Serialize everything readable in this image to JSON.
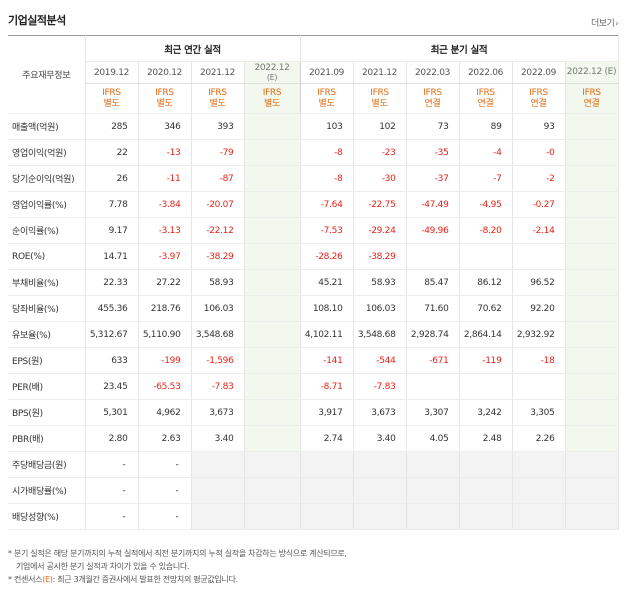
{
  "title": "기업실적분석",
  "more_label": "더보기",
  "more_arrow": "›",
  "headers": {
    "row_label": "주요재무정보",
    "annual": "최근 연간 실적",
    "quarterly": "최근 분기 실적"
  },
  "periods": [
    {
      "label": "2019.12",
      "std1": "IFRS",
      "std2": "별도",
      "est": false
    },
    {
      "label": "2020.12",
      "std1": "IFRS",
      "std2": "별도",
      "est": false
    },
    {
      "label": "2021.12",
      "std1": "IFRS",
      "std2": "별도",
      "est": false
    },
    {
      "label": "2022.12",
      "est_mark": "(E)",
      "std1": "IFRS",
      "std2": "별도",
      "est": true
    },
    {
      "label": "2021.09",
      "std1": "IFRS",
      "std2": "별도",
      "est": false
    },
    {
      "label": "2021.12",
      "std1": "IFRS",
      "std2": "별도",
      "est": false
    },
    {
      "label": "2022.03",
      "std1": "IFRS",
      "std2": "연결",
      "est": false
    },
    {
      "label": "2022.06",
      "std1": "IFRS",
      "std2": "연결",
      "est": false
    },
    {
      "label": "2022.09",
      "std1": "IFRS",
      "std2": "연결",
      "est": false
    },
    {
      "label": "2022.12 (E)",
      "std1": "IFRS",
      "std2": "연결",
      "est": true
    }
  ],
  "rows": [
    {
      "label": "매출액(억원)",
      "values": [
        "285",
        "346",
        "393",
        "",
        "103",
        "102",
        "73",
        "89",
        "93",
        ""
      ]
    },
    {
      "label": "영업이익(억원)",
      "values": [
        "22",
        "-13",
        "-79",
        "",
        "-8",
        "-23",
        "-35",
        "-4",
        "-0",
        ""
      ]
    },
    {
      "label": "당기순이익(억원)",
      "values": [
        "26",
        "-11",
        "-87",
        "",
        "-8",
        "-30",
        "-37",
        "-7",
        "-2",
        ""
      ]
    },
    {
      "label": "영업이익률(%)",
      "values": [
        "7.78",
        "-3.84",
        "-20.07",
        "",
        "-7.64",
        "-22.75",
        "-47.49",
        "-4.95",
        "-0.27",
        ""
      ]
    },
    {
      "label": "순이익률(%)",
      "values": [
        "9.17",
        "-3.13",
        "-22.12",
        "",
        "-7.53",
        "-29.24",
        "-49.96",
        "-8.20",
        "-2.14",
        ""
      ]
    },
    {
      "label": "ROE(%)",
      "values": [
        "14.71",
        "-3.97",
        "-38.29",
        "",
        "-28.26",
        "-38.29",
        "",
        "",
        "",
        ""
      ]
    },
    {
      "label": "부채비율(%)",
      "values": [
        "22.33",
        "27.22",
        "58.93",
        "",
        "45.21",
        "58.93",
        "85.47",
        "86.12",
        "96.52",
        ""
      ]
    },
    {
      "label": "당좌비율(%)",
      "values": [
        "455.36",
        "218.76",
        "106.03",
        "",
        "108.10",
        "106.03",
        "71.60",
        "70.62",
        "92.20",
        ""
      ]
    },
    {
      "label": "유보율(%)",
      "values": [
        "5,312.67",
        "5,110.90",
        "3,548.68",
        "",
        "4,102.11",
        "3,548.68",
        "2,928.74",
        "2,864.14",
        "2,932.92",
        ""
      ]
    },
    {
      "label": "EPS(원)",
      "values": [
        "633",
        "-199",
        "-1,596",
        "",
        "-141",
        "-544",
        "-671",
        "-119",
        "-18",
        ""
      ]
    },
    {
      "label": "PER(배)",
      "values": [
        "23.45",
        "-65.53",
        "-7.83",
        "",
        "-8.71",
        "-7.83",
        "",
        "",
        "",
        ""
      ]
    },
    {
      "label": "BPS(원)",
      "values": [
        "5,301",
        "4,962",
        "3,673",
        "",
        "3,917",
        "3,673",
        "3,307",
        "3,242",
        "3,305",
        ""
      ]
    },
    {
      "label": "PBR(배)",
      "values": [
        "2.80",
        "2.63",
        "3.40",
        "",
        "2.74",
        "3.40",
        "4.05",
        "2.48",
        "2.26",
        ""
      ]
    },
    {
      "label": "주당배당금(원)",
      "values": [
        "-",
        "-",
        "",
        "",
        "",
        "",
        "",
        "",
        "",
        ""
      ],
      "grey_from": 2
    },
    {
      "label": "시가배당률(%)",
      "values": [
        "-",
        "-",
        "",
        "",
        "",
        "",
        "",
        "",
        "",
        ""
      ],
      "grey_from": 2
    },
    {
      "label": "배당성향(%)",
      "values": [
        "-",
        "-",
        "",
        "",
        "",
        "",
        "",
        "",
        "",
        ""
      ],
      "grey_from": 2
    }
  ],
  "notes": {
    "line1": "* 분기 실적은 해당 분기까지의 누적 실적에서 직전 분기까지의 누적 실적을 차감하는 방식으로 계산되므로,",
    "line2": "기업에서 공시한 분기 실적과 차이가 있을 수 있습니다.",
    "line3_prefix": "* 컨센서스",
    "line3_mark": "(E)",
    "line3_rest": ": 최근 3개월간 증권사에서 발표한 전망치의 평균값입니다."
  },
  "colors": {
    "negative": "#e6231a",
    "ifrs": "#e66a10",
    "estimate_bg": "#f2f8ee"
  }
}
